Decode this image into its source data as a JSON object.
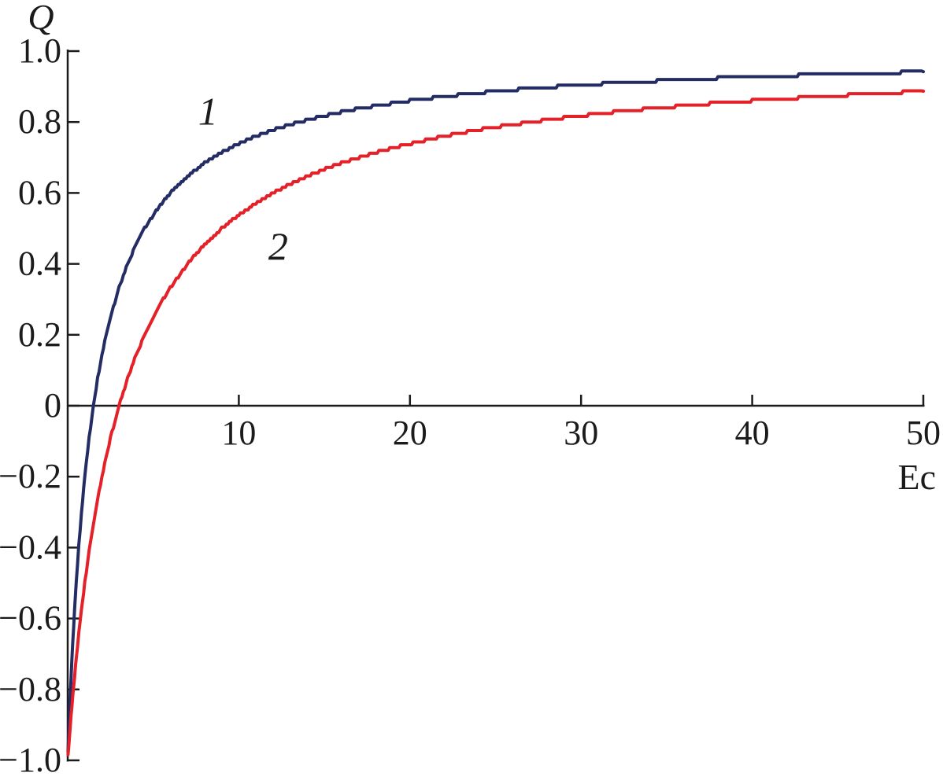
{
  "figure": {
    "background": "#ffffff",
    "description": "Line chart of charge Q versus collision energy Ec with two saturation curves labeled 1 and 2"
  },
  "chart_data": {
    "type": "line",
    "title": "",
    "xlabel": "Ec",
    "ylabel": "Q",
    "xlim": [
      0,
      50
    ],
    "ylim": [
      -1.0,
      1.0
    ],
    "grid": false,
    "legend_position": "none",
    "axis_color": "#1b1b1b",
    "x_ticks": {
      "values": [
        10,
        20,
        30,
        40,
        50
      ],
      "labels": [
        "10",
        "20",
        "30",
        "40",
        "50"
      ]
    },
    "y_ticks": {
      "values": [
        1.0,
        0.8,
        0.6,
        0.4,
        0.2,
        0,
        -0.2,
        -0.4,
        -0.6,
        -0.8,
        -1.0
      ],
      "labels": [
        "1.0",
        "0.8",
        "0.6",
        "0.4",
        "0.2",
        "0",
        "−0.2",
        "−0.4",
        "−0.6",
        "−0.8",
        "−1.0"
      ]
    },
    "series": [
      {
        "name": "1",
        "color": "#232c63",
        "label": {
          "text": "1",
          "x": 8.2,
          "y": 0.83
        },
        "points": [
          [
            0.02,
            -0.974
          ],
          [
            0.05,
            -0.935
          ],
          [
            0.1,
            -0.875
          ],
          [
            0.15,
            -0.818
          ],
          [
            0.2,
            -0.765
          ],
          [
            0.3,
            -0.667
          ],
          [
            0.4,
            -0.579
          ],
          [
            0.5,
            -0.5
          ],
          [
            0.65,
            -0.395
          ],
          [
            0.8,
            -0.304
          ],
          [
            1,
            -0.2
          ],
          [
            1.25,
            -0.091
          ],
          [
            1.5,
            0
          ],
          [
            1.75,
            0.077
          ],
          [
            2,
            0.143
          ],
          [
            2.25,
            0.2
          ],
          [
            2.5,
            0.25
          ],
          [
            3,
            0.333
          ],
          [
            3.5,
            0.4
          ],
          [
            4,
            0.455
          ],
          [
            4.5,
            0.5
          ],
          [
            5,
            0.538
          ],
          [
            5.5,
            0.571
          ],
          [
            6,
            0.6
          ],
          [
            7,
            0.647
          ],
          [
            8,
            0.684
          ],
          [
            9,
            0.714
          ],
          [
            10,
            0.739
          ],
          [
            11,
            0.76
          ],
          [
            12,
            0.778
          ],
          [
            13,
            0.793
          ],
          [
            14,
            0.806
          ],
          [
            15,
            0.818
          ],
          [
            16,
            0.829
          ],
          [
            17,
            0.838
          ],
          [
            18,
            0.846
          ],
          [
            20,
            0.86
          ],
          [
            22,
            0.872
          ],
          [
            24,
            0.882
          ],
          [
            26,
            0.891
          ],
          [
            28,
            0.898
          ],
          [
            30,
            0.905
          ],
          [
            32,
            0.91
          ],
          [
            34,
            0.915
          ],
          [
            36,
            0.92
          ],
          [
            38,
            0.924
          ],
          [
            40,
            0.928
          ],
          [
            42,
            0.931
          ],
          [
            44,
            0.934
          ],
          [
            46,
            0.937
          ],
          [
            48,
            0.939
          ],
          [
            50,
            0.942
          ]
        ]
      },
      {
        "name": "2",
        "color": "#e42028",
        "label": {
          "text": "2",
          "x": 12.3,
          "y": 0.45
        },
        "points": [
          [
            0.02,
            -0.987
          ],
          [
            0.05,
            -0.967
          ],
          [
            0.1,
            -0.935
          ],
          [
            0.15,
            -0.905
          ],
          [
            0.2,
            -0.875
          ],
          [
            0.3,
            -0.818
          ],
          [
            0.4,
            -0.765
          ],
          [
            0.5,
            -0.714
          ],
          [
            0.65,
            -0.644
          ],
          [
            0.8,
            -0.579
          ],
          [
            1,
            -0.5
          ],
          [
            1.25,
            -0.412
          ],
          [
            1.5,
            -0.333
          ],
          [
            1.75,
            -0.263
          ],
          [
            2,
            -0.2
          ],
          [
            2.25,
            -0.143
          ],
          [
            2.5,
            -0.091
          ],
          [
            3,
            0
          ],
          [
            3.5,
            0.077
          ],
          [
            4,
            0.143
          ],
          [
            4.5,
            0.2
          ],
          [
            5,
            0.25
          ],
          [
            5.5,
            0.294
          ],
          [
            6,
            0.333
          ],
          [
            7,
            0.4
          ],
          [
            8,
            0.455
          ],
          [
            9,
            0.5
          ],
          [
            10,
            0.538
          ],
          [
            11,
            0.571
          ],
          [
            12,
            0.6
          ],
          [
            13,
            0.625
          ],
          [
            14,
            0.647
          ],
          [
            15,
            0.667
          ],
          [
            16,
            0.684
          ],
          [
            17,
            0.7
          ],
          [
            18,
            0.714
          ],
          [
            20,
            0.739
          ],
          [
            22,
            0.76
          ],
          [
            24,
            0.778
          ],
          [
            26,
            0.793
          ],
          [
            28,
            0.806
          ],
          [
            30,
            0.818
          ],
          [
            32,
            0.829
          ],
          [
            34,
            0.838
          ],
          [
            36,
            0.846
          ],
          [
            38,
            0.854
          ],
          [
            40,
            0.86
          ],
          [
            42,
            0.866
          ],
          [
            44,
            0.872
          ],
          [
            46,
            0.877
          ],
          [
            48,
            0.882
          ],
          [
            50,
            0.887
          ]
        ]
      }
    ]
  }
}
